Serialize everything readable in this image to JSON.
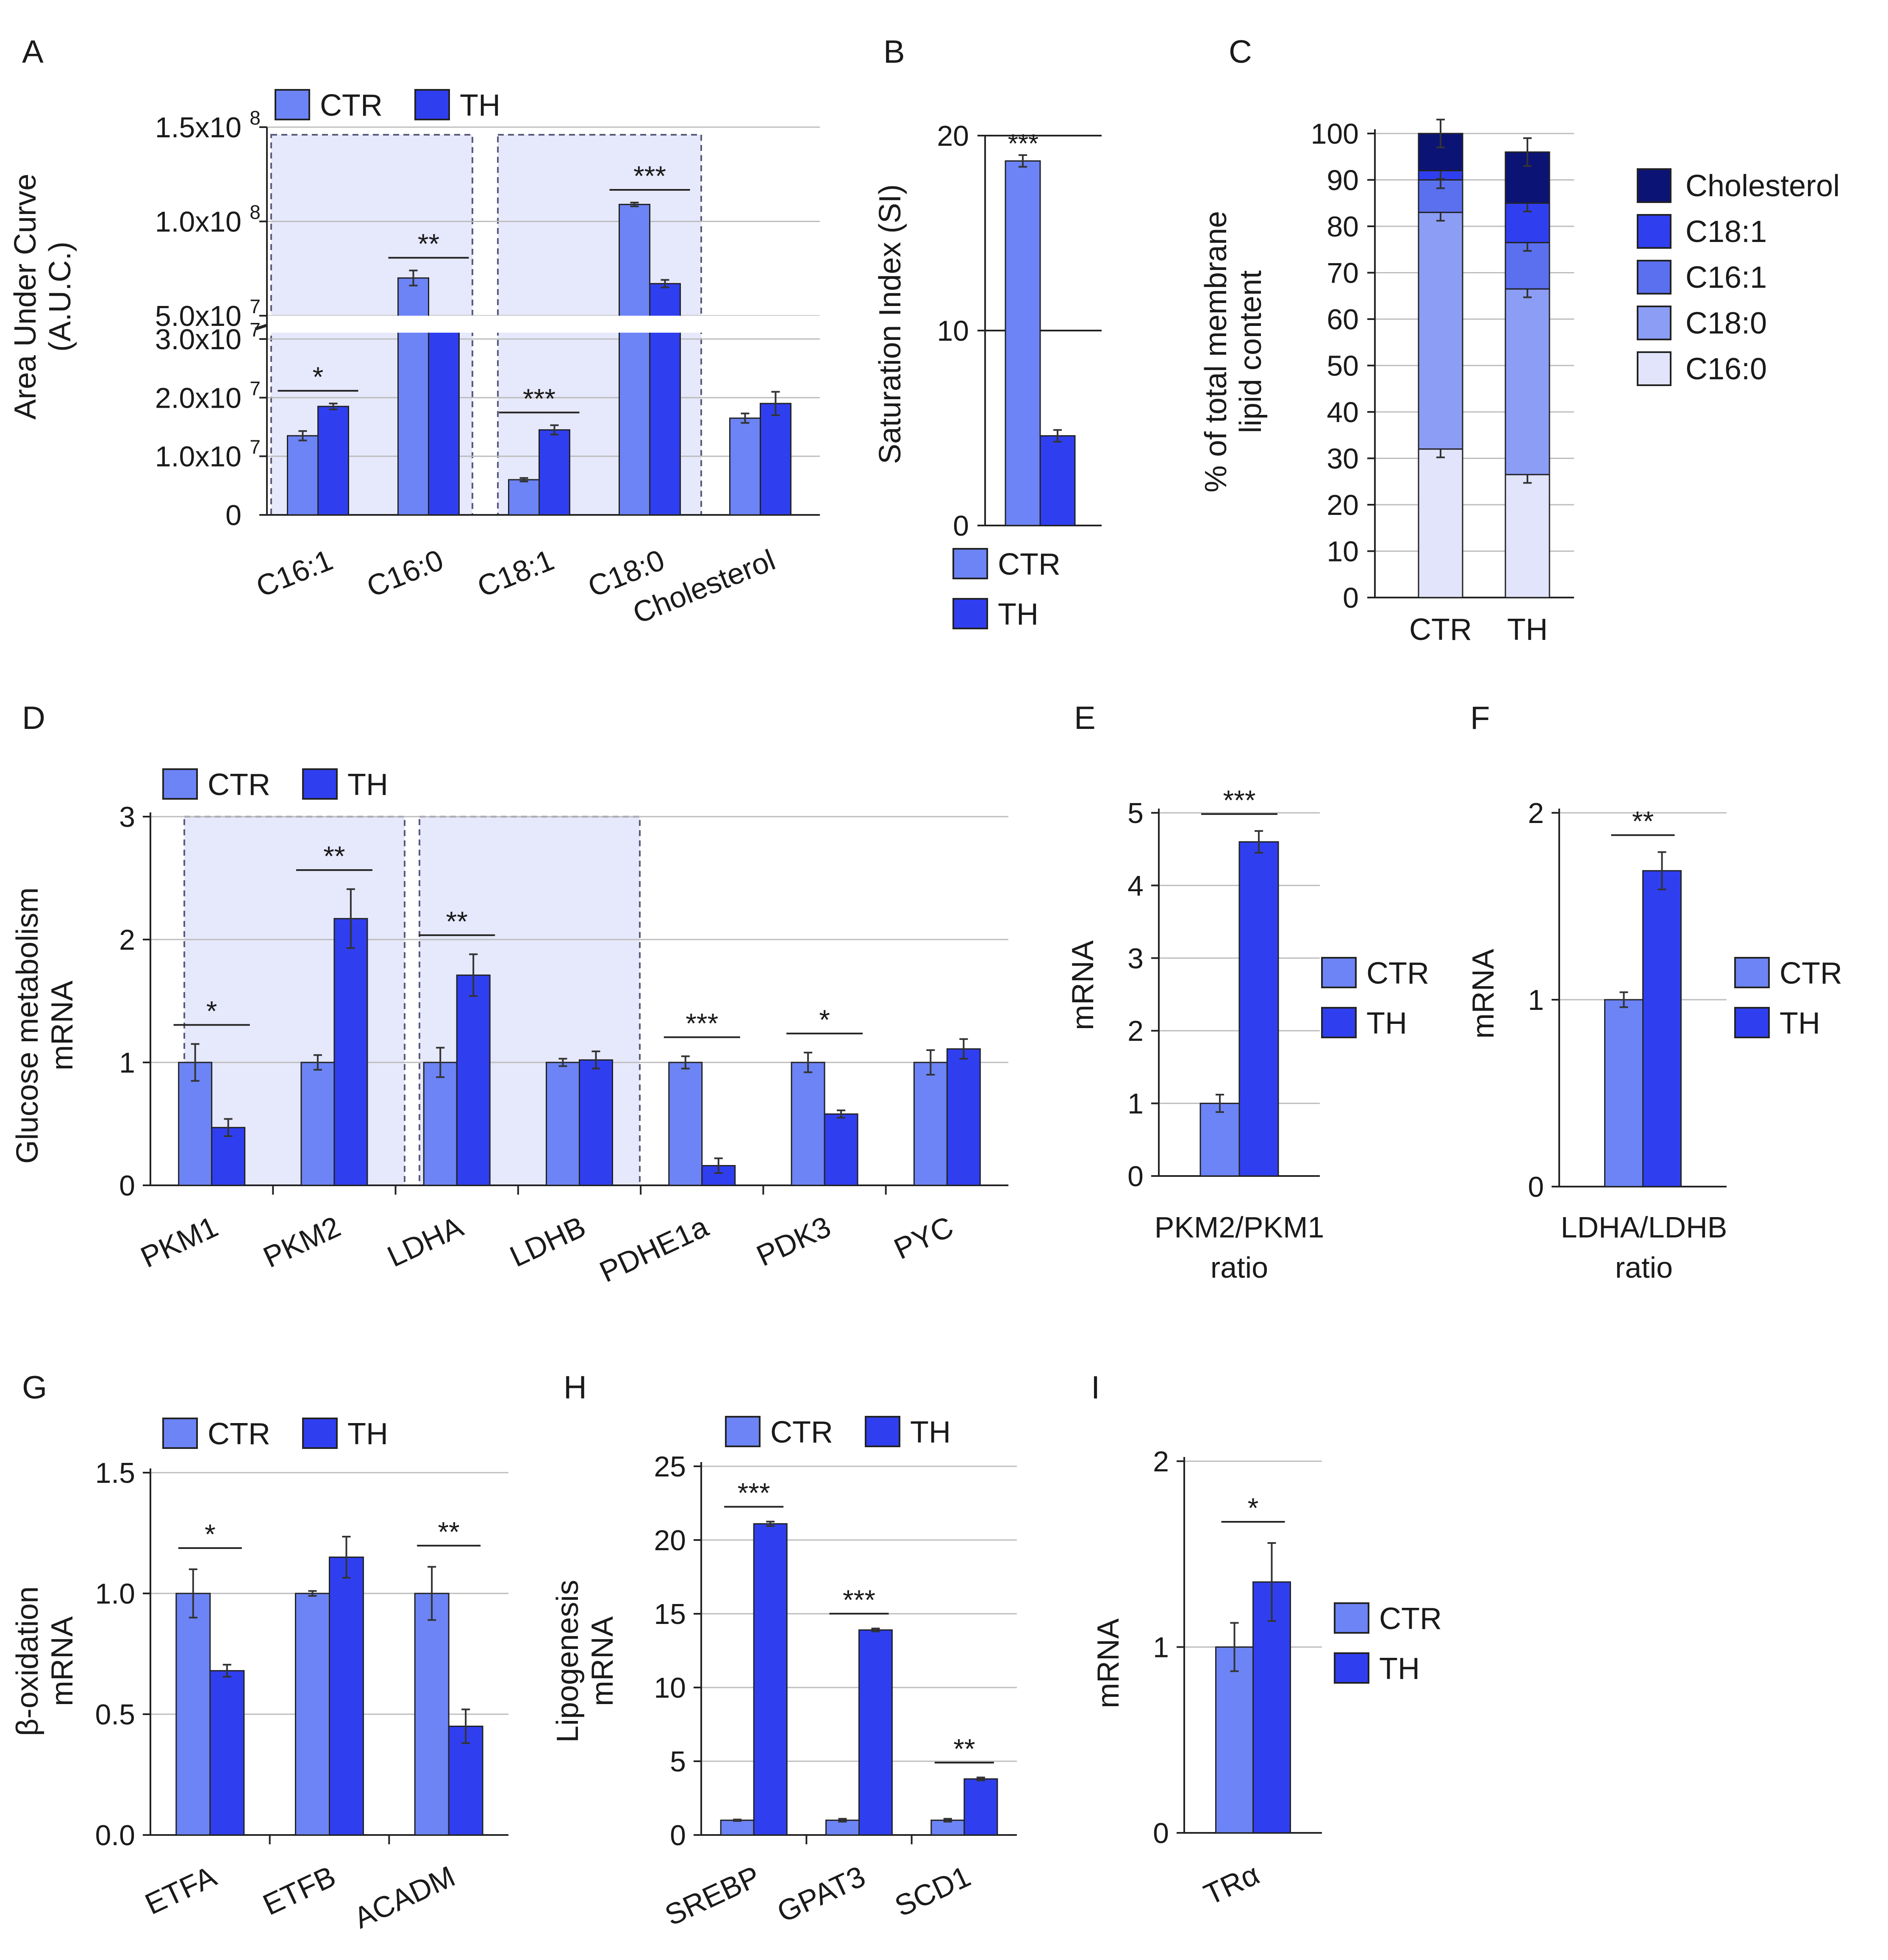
{
  "colors": {
    "ctr": "#6c84f5",
    "th": "#2f3ff0",
    "shade": "#e6e8fb",
    "grid": "#bdbdbd",
    "axis": "#222222",
    "c160": "#e1e4fb",
    "c180": "#8c9df6",
    "c161": "#5a70ef",
    "c181": "#2f3ff0",
    "chol": "#0b1475"
  },
  "legend": {
    "ctr": "CTR",
    "th": "TH"
  },
  "chart_data": [
    {
      "panel": "A",
      "type": "bar",
      "ylabel": [
        "Area Under Curve",
        "(A.U.C.)"
      ],
      "yticks": [
        "0",
        "1.0x10",
        "2.0x10",
        "3.0x10",
        "5.0x10",
        "1.0x10",
        "1.5x10"
      ],
      "yexp": [
        "",
        "7",
        "7",
        "7",
        "7",
        "8",
        "8"
      ],
      "categories": [
        "C16:1",
        "C16:0",
        "C18:1",
        "C18:0",
        "Cholesterol"
      ],
      "series": [
        {
          "name": "CTR",
          "values": [
            13500000,
            70000000,
            6000000,
            109000000,
            16500000
          ],
          "err": [
            800000,
            4000000,
            300000,
            1000000,
            800000
          ]
        },
        {
          "name": "TH",
          "values": [
            18500000,
            47000000,
            14500000,
            67000000,
            19000000
          ],
          "err": [
            500000,
            2500000,
            800000,
            2000000,
            2000000
          ]
        }
      ],
      "sig": [
        "*",
        "**",
        "***",
        "***",
        ""
      ]
    },
    {
      "panel": "B",
      "type": "bar",
      "ylabel": [
        "Saturation Index (SI)"
      ],
      "yticks": [
        "0",
        "10",
        "20"
      ],
      "ylim": [
        0,
        20
      ],
      "series": [
        {
          "name": "CTR",
          "values": [
            18.7
          ],
          "err": [
            0.3
          ]
        },
        {
          "name": "TH",
          "values": [
            4.6
          ],
          "err": [
            0.3
          ]
        }
      ],
      "sig": [
        "***"
      ]
    },
    {
      "panel": "C",
      "type": "bar",
      "stacked": true,
      "ylabel": [
        "% of total membrane",
        "lipid content"
      ],
      "yticks": [
        "0",
        "10",
        "20",
        "30",
        "40",
        "50",
        "60",
        "70",
        "80",
        "90",
        "100"
      ],
      "categories": [
        "CTR",
        "TH"
      ],
      "stack_labels": [
        "Cholesterol",
        "C18:1",
        "C16:1",
        "C18:0",
        "C16:0"
      ],
      "stacks": {
        "CTR": [
          32,
          51,
          7,
          2,
          8
        ],
        "TH": [
          26.5,
          40,
          10,
          8.5,
          11
        ]
      }
    },
    {
      "panel": "D",
      "type": "bar",
      "ylabel": [
        "Glucose metabolism",
        "mRNA"
      ],
      "yticks": [
        "0",
        "1",
        "2",
        "3"
      ],
      "ylim": [
        0,
        3
      ],
      "categories": [
        "PKM1",
        "PKM2",
        "LDHA",
        "LDHB",
        "PDHE1a",
        "PDK3",
        "PYC"
      ],
      "series": [
        {
          "name": "CTR",
          "values": [
            1,
            1,
            1,
            1,
            1,
            1,
            1
          ],
          "err": [
            0.15,
            0.06,
            0.12,
            0.03,
            0.05,
            0.08,
            0.1
          ]
        },
        {
          "name": "TH",
          "values": [
            0.47,
            2.17,
            1.71,
            1.02,
            0.16,
            0.58,
            1.11
          ],
          "err": [
            0.07,
            0.24,
            0.17,
            0.07,
            0.06,
            0.03,
            0.08
          ]
        }
      ],
      "sig": [
        "*",
        "**",
        "**",
        "",
        "***",
        "*",
        ""
      ]
    },
    {
      "panel": "E",
      "type": "bar",
      "ylabel": [
        "mRNA"
      ],
      "yticks": [
        "0",
        "1",
        "2",
        "3",
        "4",
        "5"
      ],
      "ylim": [
        0,
        5
      ],
      "xlabel": [
        "PKM2/PKM1",
        "ratio"
      ],
      "series": [
        {
          "name": "CTR",
          "values": [
            1
          ],
          "err": [
            0.12
          ]
        },
        {
          "name": "TH",
          "values": [
            4.6
          ],
          "err": [
            0.15
          ]
        }
      ],
      "sig": [
        "***"
      ]
    },
    {
      "panel": "F",
      "type": "bar",
      "ylabel": [
        "mRNA"
      ],
      "yticks": [
        "0",
        "1",
        "2"
      ],
      "ylim": [
        0,
        2
      ],
      "xlabel": [
        "LDHA/LDHB",
        "ratio"
      ],
      "series": [
        {
          "name": "CTR",
          "values": [
            1
          ],
          "err": [
            0.04
          ]
        },
        {
          "name": "TH",
          "values": [
            1.69
          ],
          "err": [
            0.1
          ]
        }
      ],
      "sig": [
        "**"
      ]
    },
    {
      "panel": "G",
      "type": "bar",
      "ylabel": [
        "β-oxidation",
        "mRNA"
      ],
      "yticks": [
        "0.0",
        "0.5",
        "1.0",
        "1.5"
      ],
      "ylim": [
        0,
        1.5
      ],
      "categories": [
        "ETFA",
        "ETFB",
        "ACADM"
      ],
      "series": [
        {
          "name": "CTR",
          "values": [
            1.0,
            1.0,
            1.0
          ],
          "err": [
            0.1,
            0.01,
            0.11
          ]
        },
        {
          "name": "TH",
          "values": [
            0.68,
            1.15,
            0.45
          ],
          "err": [
            0.025,
            0.085,
            0.07
          ]
        }
      ],
      "sig": [
        "*",
        "",
        "**"
      ]
    },
    {
      "panel": "H",
      "type": "bar",
      "ylabel": [
        "Lipogenesis",
        "mRNA"
      ],
      "yticks": [
        "0",
        "5",
        "10",
        "15",
        "20",
        "25"
      ],
      "ylim": [
        0,
        25
      ],
      "categories": [
        "SREBP",
        "GPAT3",
        "SCD1"
      ],
      "series": [
        {
          "name": "CTR",
          "values": [
            1,
            1,
            1
          ],
          "err": [
            0.05,
            0.1,
            0.1
          ]
        },
        {
          "name": "TH",
          "values": [
            21.1,
            13.9,
            3.8
          ],
          "err": [
            0.15,
            0.1,
            0.1
          ]
        }
      ],
      "sig": [
        "***",
        "***",
        "**"
      ]
    },
    {
      "panel": "I",
      "type": "bar",
      "ylabel": [
        "mRNA"
      ],
      "yticks": [
        "0",
        "1",
        "2"
      ],
      "ylim": [
        0,
        2
      ],
      "categories": [
        "TRα"
      ],
      "series": [
        {
          "name": "CTR",
          "values": [
            1.0
          ],
          "err": [
            0.13
          ]
        },
        {
          "name": "TH",
          "values": [
            1.35
          ],
          "err": [
            0.21
          ]
        }
      ],
      "sig": [
        "*"
      ]
    }
  ]
}
